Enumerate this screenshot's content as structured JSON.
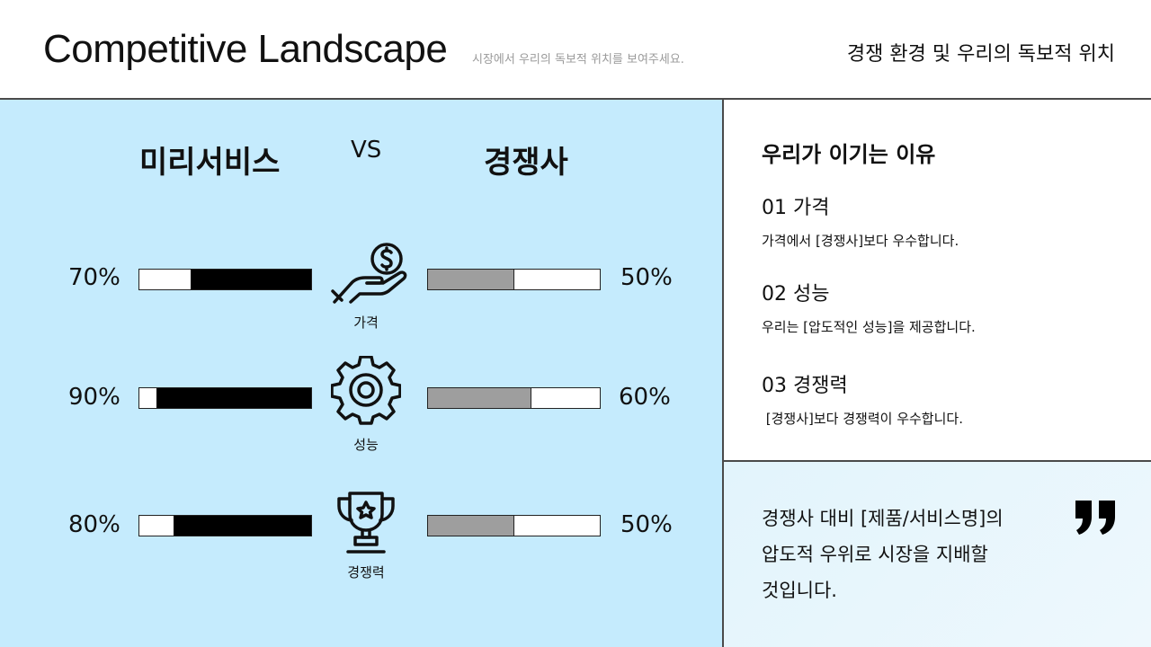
{
  "header": {
    "title": "Competitive Landscape",
    "subtitle": "시장에서 우리의 독보적 위치를 보여주세요.",
    "right_title": "경쟁 환경 및 우리의 독보적 위치"
  },
  "comparison": {
    "us_name": "미리서비스",
    "vs_label": "VS",
    "them_name": "경쟁사",
    "rows": [
      {
        "label": "가격",
        "icon": "hand-coin-icon",
        "us_pct": "70%",
        "us_value": 0.7,
        "them_pct": "50%",
        "them_value": 0.5
      },
      {
        "label": "성능",
        "icon": "gear-icon",
        "us_pct": "90%",
        "us_value": 0.9,
        "them_pct": "60%",
        "them_value": 0.6
      },
      {
        "label": "경쟁력",
        "icon": "trophy-icon",
        "us_pct": "80%",
        "us_value": 0.8,
        "them_pct": "50%",
        "them_value": 0.5
      }
    ]
  },
  "reasons": {
    "title": "우리가 이기는 이유",
    "items": [
      {
        "heading": "01 가격",
        "desc": "가격에서 [경쟁사]보다 우수합니다."
      },
      {
        "heading": "02 성능",
        "desc": "우리는 [압도적인 성능]을 제공합니다."
      },
      {
        "heading": "03 경쟁력",
        "desc": " [경쟁사]보다 경쟁력이 우수합니다."
      }
    ]
  },
  "quote": {
    "lines": [
      "경쟁사 대비 [제품/서비스명]의",
      "압도적 우위로 시장을 지배할",
      "것입니다."
    ],
    "icon": "quote-mark-icon"
  },
  "colors": {
    "left_panel_bg": "#c5ebfd",
    "us_bar": "#000000",
    "them_bar": "#9e9e9e"
  }
}
